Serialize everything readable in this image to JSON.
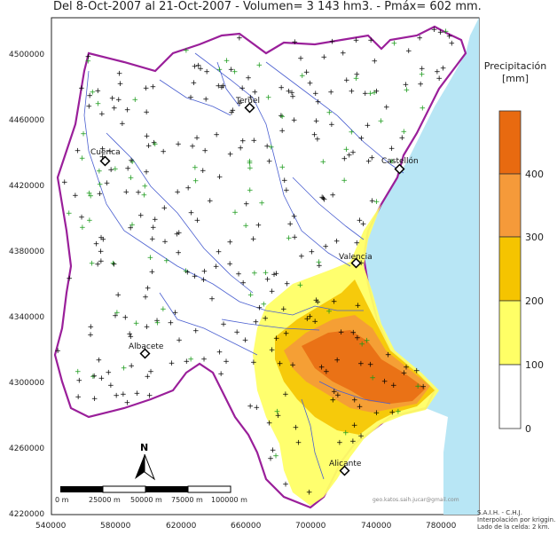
{
  "title": "Del 8-Oct-2007 al 21-Oct-2007 - Volumen= 3 143 hm3. - Pmáx= 602 mm.",
  "axes": {
    "x_ticks": [
      "540000",
      "580000",
      "620000",
      "660000",
      "700000",
      "740000",
      "780000"
    ],
    "y_ticks": [
      "4500000",
      "4460000",
      "4420000",
      "4380000",
      "4340000",
      "4300000",
      "4260000",
      "4220000"
    ]
  },
  "cities": [
    {
      "name": "Teruel"
    },
    {
      "name": "Cuenca"
    },
    {
      "name": "Castellón"
    },
    {
      "name": "Valencia"
    },
    {
      "name": "Albacete"
    },
    {
      "name": "Alicante"
    }
  ],
  "legend": {
    "title_line1": "Precipitación",
    "title_line2": "[mm]",
    "labels": [
      "400",
      "300",
      "200",
      "100",
      "0"
    ],
    "colors": {
      "c0": "#ffffff",
      "c100": "#ffff66",
      "c200": "#f5c400",
      "c300": "#f59a3a",
      "c400": "#e86a10"
    }
  },
  "scale_bar": {
    "labels": [
      "0 m",
      "25000 m",
      "50000 m",
      "75000 m",
      "100000 m"
    ]
  },
  "north_label": "N",
  "email": "geo.katos.saih.jucar@gmail.com",
  "credit": [
    "S.A.I.H. - C.H.J.",
    "Interpolación por kriggin.",
    "Lado de la celda: 2 km."
  ],
  "colors": {
    "sea": "#b8e6f5",
    "basin_border": "#9a1f9a",
    "rivers": "#4a5fd0",
    "station_black": "#000000",
    "station_green": "#1a9a1a"
  }
}
